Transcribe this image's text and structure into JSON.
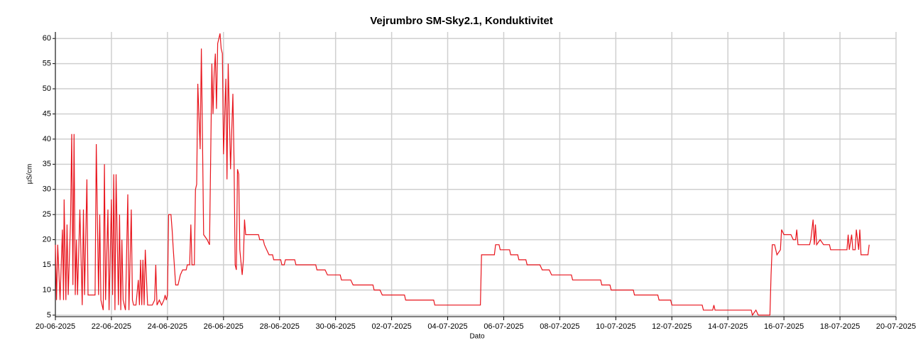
{
  "chart_data": {
    "type": "line",
    "title": "Vejrumbro SM-Sky2.1, Konduktivitet",
    "x_label": "Dato",
    "y_label": "µS/cm",
    "grid": true,
    "xlim": [
      "2025-06-20",
      "2025-07-20"
    ],
    "xticks": [
      {
        "value": "2025-06-20",
        "label": "20-06-2025"
      },
      {
        "value": "2025-06-22",
        "label": "22-06-2025"
      },
      {
        "value": "2025-06-24",
        "label": "24-06-2025"
      },
      {
        "value": "2025-06-26",
        "label": "26-06-2025"
      },
      {
        "value": "2025-06-28",
        "label": "28-06-2025"
      },
      {
        "value": "2025-06-30",
        "label": "30-06-2025"
      },
      {
        "value": "2025-07-02",
        "label": "02-07-2025"
      },
      {
        "value": "2025-07-04",
        "label": "04-07-2025"
      },
      {
        "value": "2025-07-06",
        "label": "06-07-2025"
      },
      {
        "value": "2025-07-08",
        "label": "08-07-2025"
      },
      {
        "value": "2025-07-10",
        "label": "10-07-2025"
      },
      {
        "value": "2025-07-12",
        "label": "12-07-2025"
      },
      {
        "value": "2025-07-14",
        "label": "14-07-2025"
      },
      {
        "value": "2025-07-16",
        "label": "16-07-2025"
      },
      {
        "value": "2025-07-18",
        "label": "18-07-2025"
      },
      {
        "value": "2025-07-20",
        "label": "20-07-2025"
      }
    ],
    "ylim": [
      4.7,
      61.3
    ],
    "yticks": [
      5,
      10,
      15,
      20,
      25,
      30,
      35,
      40,
      45,
      50,
      55,
      60
    ],
    "x": [
      "2025-06-20 00:00",
      "2025-06-20 01:00",
      "2025-06-20 02:00",
      "2025-06-20 04:00",
      "2025-06-20 06:00",
      "2025-06-20 07:00",
      "2025-06-20 07:30",
      "2025-06-20 09:00",
      "2025-06-20 10:00",
      "2025-06-20 11:00",
      "2025-06-20 13:00",
      "2025-06-20 14:00",
      "2025-06-20 15:00",
      "2025-06-20 16:00",
      "2025-06-20 17:00",
      "2025-06-20 18:00",
      "2025-06-20 19:00",
      "2025-06-20 21:00",
      "2025-06-20 23:00",
      "2025-06-21 00:00",
      "2025-06-21 01:00",
      "2025-06-21 03:00",
      "2025-06-21 04:00",
      "2025-06-21 06:00",
      "2025-06-21 08:00",
      "2025-06-21 10:00",
      "2025-06-21 11:00",
      "2025-06-21 13:00",
      "2025-06-21 14:00",
      "2025-06-21 15:00",
      "2025-06-21 17:00",
      "2025-06-21 18:00",
      "2025-06-21 19:00",
      "2025-06-21 21:00",
      "2025-06-21 22:00",
      "2025-06-22 00:00",
      "2025-06-22 01:00",
      "2025-06-22 02:00",
      "2025-06-22 03:00",
      "2025-06-22 04:00",
      "2025-06-22 06:00",
      "2025-06-22 07:00",
      "2025-06-22 08:00",
      "2025-06-22 09:00",
      "2025-06-22 10:00",
      "2025-06-22 12:00",
      "2025-06-22 14:00",
      "2025-06-22 15:00",
      "2025-06-22 17:00",
      "2025-06-22 18:00",
      "2025-06-22 19:00",
      "2025-06-22 21:00",
      "2025-06-22 23:00",
      "2025-06-23 00:00",
      "2025-06-23 01:00",
      "2025-06-23 02:00",
      "2025-06-23 03:00",
      "2025-06-23 04:00",
      "2025-06-23 05:00",
      "2025-06-23 07:00",
      "2025-06-23 09:00",
      "2025-06-23 11:00",
      "2025-06-23 13:00",
      "2025-06-23 14:00",
      "2025-06-23 15:00",
      "2025-06-23 17:00",
      "2025-06-23 19:00",
      "2025-06-23 21:00",
      "2025-06-23 22:00",
      "2025-06-23 23:00",
      "2025-06-24 00:00",
      "2025-06-24 01:00",
      "2025-06-24 03:00",
      "2025-06-24 04:00",
      "2025-06-24 05:00",
      "2025-06-24 07:00",
      "2025-06-24 09:00",
      "2025-06-24 11:00",
      "2025-06-24 13:00",
      "2025-06-24 16:00",
      "2025-06-24 17:00",
      "2025-06-24 19:00",
      "2025-06-24 20:00",
      "2025-06-24 21:00",
      "2025-06-24 23:00",
      "2025-06-25 00:00",
      "2025-06-25 01:00",
      "2025-06-25 02:00",
      "2025-06-25 04:00",
      "2025-06-25 05:00",
      "2025-06-25 06:00",
      "2025-06-25 07:00",
      "2025-06-25 10:00",
      "2025-06-25 12:00",
      "2025-06-25 13:00",
      "2025-06-25 14:00",
      "2025-06-25 15:00",
      "2025-06-25 16:00",
      "2025-06-25 17:00",
      "2025-06-25 18:00",
      "2025-06-25 19:00",
      "2025-06-25 21:00",
      "2025-06-25 22:00",
      "2025-06-25 23:00",
      "2025-06-26 00:00",
      "2025-06-26 02:00",
      "2025-06-26 03:00",
      "2025-06-26 04:00",
      "2025-06-26 06:00",
      "2025-06-26 08:00",
      "2025-06-26 09:00",
      "2025-06-26 10:00",
      "2025-06-26 11:00",
      "2025-06-26 12:00",
      "2025-06-26 13:00",
      "2025-06-26 14:00",
      "2025-06-26 16:00",
      "2025-06-26 17:00",
      "2025-06-26 18:00",
      "2025-06-26 19:00",
      "2025-06-27 06:00",
      "2025-06-27 07:00",
      "2025-06-27 10:00",
      "2025-06-27 11:00",
      "2025-06-27 13:00",
      "2025-06-27 15:00",
      "2025-06-27 18:00",
      "2025-06-27 19:00",
      "2025-06-28 01:00",
      "2025-06-28 02:00",
      "2025-06-28 04:00",
      "2025-06-28 05:00",
      "2025-06-28 13:00",
      "2025-06-28 14:00",
      "2025-06-29 07:00",
      "2025-06-29 08:00",
      "2025-06-29 15:00",
      "2025-06-29 17:00",
      "2025-06-30 04:00",
      "2025-06-30 05:00",
      "2025-06-30 13:00",
      "2025-06-30 15:00",
      "2025-07-01 08:00",
      "2025-07-01 09:00",
      "2025-07-01 14:00",
      "2025-07-01 16:00",
      "2025-07-02 11:00",
      "2025-07-02 12:00",
      "2025-07-03 12:00",
      "2025-07-03 13:00",
      "2025-07-05 04:00",
      "2025-07-05 05:00",
      "2025-07-05 16:00",
      "2025-07-05 17:00",
      "2025-07-05 20:00",
      "2025-07-05 21:00",
      "2025-07-06 05:00",
      "2025-07-06 06:00",
      "2025-07-06 12:00",
      "2025-07-06 13:00",
      "2025-07-06 19:00",
      "2025-07-06 20:00",
      "2025-07-07 07:00",
      "2025-07-07 09:00",
      "2025-07-07 15:00",
      "2025-07-07 17:00",
      "2025-07-08 10:00",
      "2025-07-08 11:00",
      "2025-07-09 11:00",
      "2025-07-09 12:00",
      "2025-07-09 19:00",
      "2025-07-09 20:00",
      "2025-07-10 15:00",
      "2025-07-10 16:00",
      "2025-07-11 12:00",
      "2025-07-11 13:00",
      "2025-07-11 23:00",
      "2025-07-12 00:00",
      "2025-07-13 02:00",
      "2025-07-13 03:00",
      "2025-07-13 11:00",
      "2025-07-13 12:00",
      "2025-07-13 13:00",
      "2025-07-14 20:00",
      "2025-07-14 21:00",
      "2025-07-15 00:00",
      "2025-07-15 02:00",
      "2025-07-15 12:00",
      "2025-07-15 13:00",
      "2025-07-15 14:00",
      "2025-07-15 16:00",
      "2025-07-15 18:00",
      "2025-07-15 21:00",
      "2025-07-15 22:00",
      "2025-07-16 00:00",
      "2025-07-16 06:00",
      "2025-07-16 08:00",
      "2025-07-16 10:00",
      "2025-07-16 11:00",
      "2025-07-16 12:00",
      "2025-07-16 22:00",
      "2025-07-16 23:00",
      "2025-07-17 01:00",
      "2025-07-17 02:00",
      "2025-07-17 03:00",
      "2025-07-17 04:00",
      "2025-07-17 07:00",
      "2025-07-17 10:00",
      "2025-07-17 15:00",
      "2025-07-17 16:00",
      "2025-07-18 06:00",
      "2025-07-18 07:00",
      "2025-07-18 08:00",
      "2025-07-18 10:00",
      "2025-07-18 11:00",
      "2025-07-18 13:00",
      "2025-07-18 14:00",
      "2025-07-18 16:00",
      "2025-07-18 17:00",
      "2025-07-18 18:00",
      "2025-07-19 00:00",
      "2025-07-19 01:00"
    ],
    "series": [
      {
        "name": "Konduktivitet",
        "color": "#e8141c",
        "values": [
          19,
          8,
          19,
          8,
          22,
          8,
          28,
          8,
          23,
          9,
          24,
          41,
          11,
          41,
          9,
          20,
          9,
          26,
          7,
          26,
          9,
          32,
          9,
          9,
          9,
          9,
          39,
          9,
          25,
          8,
          6,
          35,
          8,
          26,
          6,
          28,
          9,
          33,
          6,
          33,
          7,
          25,
          6,
          20,
          8,
          6,
          29,
          6,
          26,
          8,
          7,
          7,
          12,
          7,
          16,
          7,
          16,
          7,
          18,
          7,
          7,
          7,
          8,
          15,
          7,
          8,
          7,
          8,
          9,
          8,
          9,
          25,
          25,
          22,
          18,
          11,
          11,
          13,
          14,
          14,
          15,
          15,
          23,
          15,
          15,
          30,
          31,
          51,
          38,
          58,
          40,
          21,
          20,
          19,
          36,
          55,
          45,
          53,
          57,
          46,
          59,
          61,
          58,
          57,
          37,
          52,
          32,
          55,
          34,
          49,
          36,
          15,
          14,
          34,
          33,
          18,
          13,
          16,
          24,
          21,
          21,
          20,
          20,
          19,
          18,
          17,
          17,
          16,
          16,
          15,
          15,
          16,
          16,
          15,
          15,
          14,
          14,
          13,
          13,
          12,
          12,
          11,
          11,
          10,
          10,
          9,
          9,
          8,
          8,
          7,
          7,
          17,
          17,
          19,
          19,
          18,
          18,
          17,
          17,
          16,
          16,
          15,
          15,
          14,
          14,
          13,
          13,
          12,
          12,
          11,
          11,
          10,
          10,
          9,
          9,
          8,
          8,
          7,
          7,
          6,
          6,
          7,
          6,
          6,
          5,
          6,
          5,
          5,
          13,
          19,
          19,
          17,
          18,
          22,
          21,
          21,
          20,
          20,
          22,
          19,
          19,
          20,
          24,
          19,
          23,
          19,
          20,
          19,
          19,
          18,
          18,
          21,
          18,
          21,
          18,
          18,
          22,
          18,
          22,
          17,
          17,
          19
        ]
      }
    ]
  }
}
